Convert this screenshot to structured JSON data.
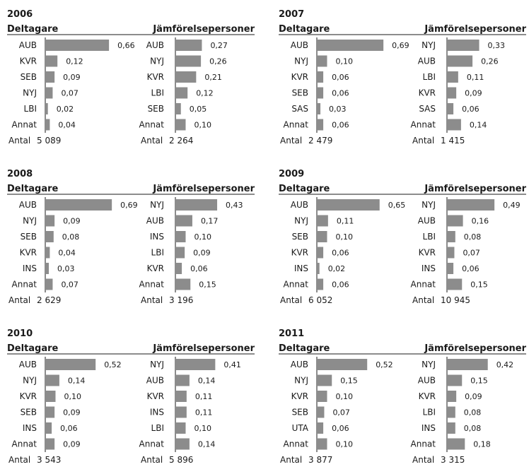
{
  "chart_data": [
    {
      "type": "bar",
      "title": "2006",
      "groups": [
        {
          "name": "Deltagare",
          "categories": [
            "AUB",
            "KVR",
            "SEB",
            "NYJ",
            "LBI",
            "Annat"
          ],
          "values": [
            0.66,
            0.12,
            0.09,
            0.07,
            0.02,
            0.04
          ],
          "value_labels": [
            "0,66",
            "0,12",
            "0,09",
            "0,07",
            "0,02",
            "0,04"
          ],
          "count_label": "Antal",
          "count": "5 089"
        },
        {
          "name": "Jämförelsepersoner",
          "categories": [
            "AUB",
            "NYJ",
            "KVR",
            "LBI",
            "SEB",
            "Annat"
          ],
          "values": [
            0.27,
            0.26,
            0.21,
            0.12,
            0.05,
            0.1
          ],
          "value_labels": [
            "0,27",
            "0,26",
            "0,21",
            "0,12",
            "0,05",
            "0,10"
          ],
          "count_label": "Antal",
          "count": "2 264"
        }
      ]
    },
    {
      "type": "bar",
      "title": "2007",
      "groups": [
        {
          "name": "Deltagare",
          "categories": [
            "AUB",
            "NYJ",
            "KVR",
            "SEB",
            "SAS",
            "Annat"
          ],
          "values": [
            0.69,
            0.1,
            0.06,
            0.06,
            0.03,
            0.06
          ],
          "value_labels": [
            "0,69",
            "0,10",
            "0,06",
            "0,06",
            "0,03",
            "0,06"
          ],
          "count_label": "Antal",
          "count": "2 479"
        },
        {
          "name": "Jämförelsepersoner",
          "categories": [
            "NYJ",
            "AUB",
            "LBI",
            "KVR",
            "SAS",
            "Annat"
          ],
          "values": [
            0.33,
            0.26,
            0.11,
            0.09,
            0.06,
            0.14
          ],
          "value_labels": [
            "0,33",
            "0,26",
            "0,11",
            "0,09",
            "0,06",
            "0,14"
          ],
          "count_label": "Antal",
          "count": "1 415"
        }
      ]
    },
    {
      "type": "bar",
      "title": "2008",
      "groups": [
        {
          "name": "Deltagare",
          "categories": [
            "AUB",
            "NYJ",
            "SEB",
            "KVR",
            "INS",
            "Annat"
          ],
          "values": [
            0.69,
            0.09,
            0.08,
            0.04,
            0.03,
            0.07
          ],
          "value_labels": [
            "0,69",
            "0,09",
            "0,08",
            "0,04",
            "0,03",
            "0,07"
          ],
          "count_label": "Antal",
          "count": "2 629"
        },
        {
          "name": "Jämförelsepersoner",
          "categories": [
            "NYJ",
            "AUB",
            "INS",
            "LBI",
            "KVR",
            "Annat"
          ],
          "values": [
            0.43,
            0.17,
            0.1,
            0.09,
            0.06,
            0.15
          ],
          "value_labels": [
            "0,43",
            "0,17",
            "0,10",
            "0,09",
            "0,06",
            "0,15"
          ],
          "count_label": "Antal",
          "count": "3 196"
        }
      ]
    },
    {
      "type": "bar",
      "title": "2009",
      "groups": [
        {
          "name": "Deltagare",
          "categories": [
            "AUB",
            "NYJ",
            "SEB",
            "KVR",
            "INS",
            "Annat"
          ],
          "values": [
            0.65,
            0.11,
            0.1,
            0.06,
            0.02,
            0.06
          ],
          "value_labels": [
            "0,65",
            "0,11",
            "0,10",
            "0,06",
            "0,02",
            "0,06"
          ],
          "count_label": "Antal",
          "count": "6 052"
        },
        {
          "name": "Jämförelsepersoner",
          "categories": [
            "NYJ",
            "AUB",
            "LBI",
            "KVR",
            "INS",
            "Annat"
          ],
          "values": [
            0.49,
            0.16,
            0.08,
            0.07,
            0.06,
            0.15
          ],
          "value_labels": [
            "0,49",
            "0,16",
            "0,08",
            "0,07",
            "0,06",
            "0,15"
          ],
          "count_label": "Antal",
          "count": "10 945"
        }
      ]
    },
    {
      "type": "bar",
      "title": "2010",
      "groups": [
        {
          "name": "Deltagare",
          "categories": [
            "AUB",
            "NYJ",
            "KVR",
            "SEB",
            "INS",
            "Annat"
          ],
          "values": [
            0.52,
            0.14,
            0.1,
            0.09,
            0.06,
            0.09
          ],
          "value_labels": [
            "0,52",
            "0,14",
            "0,10",
            "0,09",
            "0,06",
            "0,09"
          ],
          "count_label": "Antal",
          "count": "3 543"
        },
        {
          "name": "Jämförelsepersoner",
          "categories": [
            "NYJ",
            "AUB",
            "KVR",
            "INS",
            "LBI",
            "Annat"
          ],
          "values": [
            0.41,
            0.14,
            0.11,
            0.11,
            0.1,
            0.14
          ],
          "value_labels": [
            "0,41",
            "0,14",
            "0,11",
            "0,11",
            "0,10",
            "0,14"
          ],
          "count_label": "Antal",
          "count": "5 896"
        }
      ]
    },
    {
      "type": "bar",
      "title": "2011",
      "groups": [
        {
          "name": "Deltagare",
          "categories": [
            "AUB",
            "NYJ",
            "KVR",
            "SEB",
            "UTA",
            "Annat"
          ],
          "values": [
            0.52,
            0.15,
            0.1,
            0.07,
            0.06,
            0.1
          ],
          "value_labels": [
            "0,52",
            "0,15",
            "0,10",
            "0,07",
            "0,06",
            "0,10"
          ],
          "count_label": "Antal",
          "count": "3 877"
        },
        {
          "name": "Jämförelsepersoner",
          "categories": [
            "NYJ",
            "AUB",
            "KVR",
            "LBI",
            "INS",
            "Annat"
          ],
          "values": [
            0.42,
            0.15,
            0.09,
            0.08,
            0.08,
            0.18
          ],
          "value_labels": [
            "0,42",
            "0,15",
            "0,09",
            "0,08",
            "0,08",
            "0,18"
          ],
          "count_label": "Antal",
          "count": "3 315"
        }
      ]
    }
  ],
  "style": {
    "bar_color": "#8c8c8c",
    "text_color": "#1a1a1a"
  }
}
